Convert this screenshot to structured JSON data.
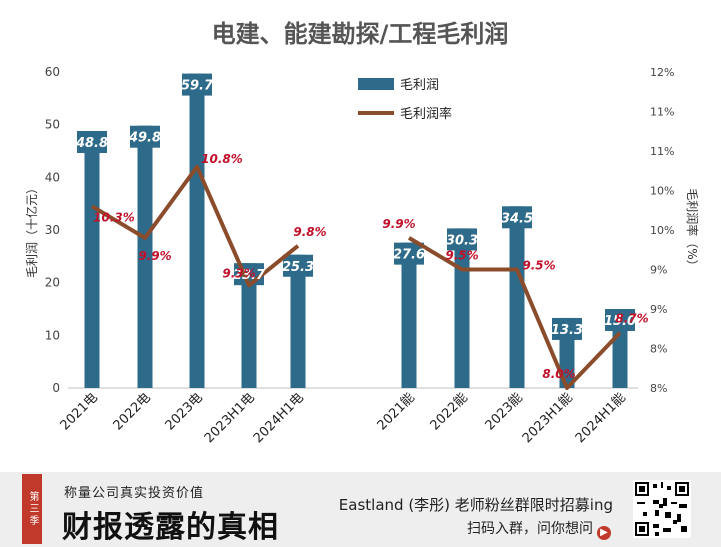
{
  "chart_data": {
    "type": "bar",
    "title": "电建、能建勘探/工程毛利润",
    "ylabel": "毛利润（十亿元）",
    "y2label": "毛利润率（%）",
    "ylim": [
      0,
      60
    ],
    "yticks": [
      "0",
      "10",
      "20",
      "30",
      "40",
      "50",
      "60"
    ],
    "y2lim": [
      8,
      12
    ],
    "y2ticks": [
      "8%",
      "8%",
      "9%",
      "9%",
      "10%",
      "10%",
      "11%",
      "11%",
      "12%"
    ],
    "legend": {
      "bar": "毛利润",
      "line": "毛利润率"
    },
    "bar_color": "#2e6b8a",
    "line_color": "#8b4c2c",
    "categories": [
      "2021电",
      "2022电",
      "2023电",
      "2023H1电",
      "2024H1电",
      "2021能",
      "2022能",
      "2023能",
      "2023H1能",
      "2024H1能"
    ],
    "series": [
      {
        "name": "毛利润",
        "values": [
          48.8,
          49.8,
          59.7,
          23.7,
          25.3,
          27.6,
          30.3,
          34.5,
          13.3,
          15.0
        ],
        "labels": [
          "48.8",
          "49.8",
          "59.7",
          "23.7",
          "25.3",
          "27.6",
          "30.3",
          "34.5",
          "13.3",
          "15.0"
        ]
      },
      {
        "name": "毛利润率",
        "values": [
          10.3,
          9.9,
          10.8,
          9.3,
          9.8,
          9.9,
          9.5,
          9.5,
          8.0,
          8.7
        ],
        "labels": [
          "10.3%",
          "9.9%",
          "10.8%",
          "9.3%",
          "9.8%",
          "9.9%",
          "9.5%",
          "9.5%",
          "8.0%",
          "8.7%"
        ]
      }
    ]
  },
  "footer": {
    "badge": "第三季",
    "subtitle": "称量公司真实投资价值",
    "brand": "财报透露的真相",
    "promo": "Eastland (李彤) 老师粉丝群限时招募ing",
    "cta": "扫码入群，问你想问",
    "cta_icon": "arrow-right-icon"
  }
}
